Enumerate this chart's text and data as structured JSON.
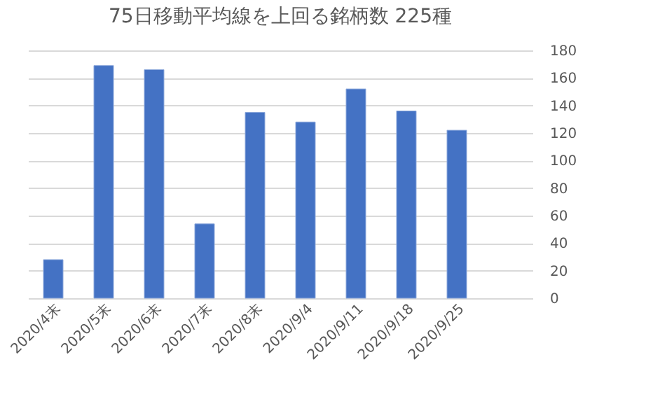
{
  "chart_data": {
    "type": "bar",
    "title": "75日移動平均線を上回る銘柄数 225種",
    "categories": [
      "2020/4末",
      "2020/5末",
      "2020/6末",
      "2020/7末",
      "2020/8末",
      "2020/9/4",
      "2020/9/11",
      "2020/9/18",
      "2020/9/25",
      null
    ],
    "values": [
      28,
      169,
      166,
      54,
      135,
      128,
      152,
      136,
      122,
      null
    ],
    "color": "#4472c4",
    "ylim": [
      0,
      180
    ],
    "yticks": [
      0,
      20,
      40,
      60,
      80,
      100,
      120,
      140,
      160,
      180
    ],
    "grid": "y"
  }
}
